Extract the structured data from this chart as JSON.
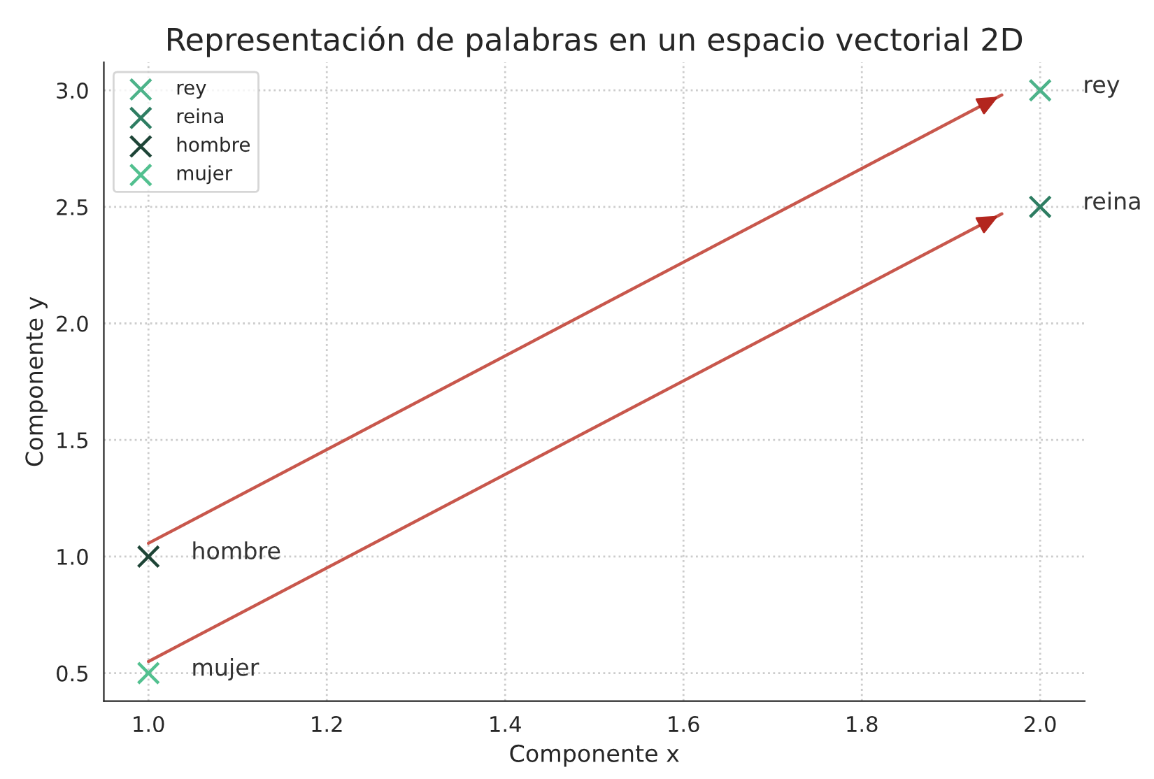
{
  "chart_data": {
    "type": "scatter",
    "title": "Representación de palabras en un espacio vectorial 2D",
    "xlabel": "Componente x",
    "ylabel": "Componente y",
    "series": [
      {
        "name": "rey",
        "color": "#4db38a",
        "marker": "cross",
        "x": [
          2.0
        ],
        "values": [
          3.0
        ]
      },
      {
        "name": "reina",
        "color": "#2e7d62",
        "marker": "cross",
        "x": [
          2.0
        ],
        "values": [
          2.5
        ]
      },
      {
        "name": "hombre",
        "color": "#1d4436",
        "marker": "cross",
        "x": [
          1.0
        ],
        "values": [
          1.0
        ]
      },
      {
        "name": "mujer",
        "color": "#52c08f",
        "marker": "cross",
        "x": [
          1.0
        ],
        "values": [
          0.5
        ]
      },
      {
        "type": "line",
        "color": "#c8574c",
        "marker": "none",
        "x": [
          1.0,
          1.957
        ],
        "values": [
          1.057,
          2.98
        ]
      },
      {
        "type": "line",
        "color": "#c8574c",
        "marker": "none",
        "x": [
          1.0,
          1.957
        ],
        "values": [
          0.55,
          2.47
        ]
      }
    ],
    "xlim": [
      0.95,
      2.05
    ],
    "ylim": [
      0.38,
      3.12
    ],
    "xticks": [
      {
        "value": 1.0,
        "label": "1.0"
      },
      {
        "value": 1.2,
        "label": "1.2"
      },
      {
        "value": 1.4,
        "label": "1.4"
      },
      {
        "value": 1.6,
        "label": "1.6"
      },
      {
        "value": 1.8,
        "label": "1.8"
      },
      {
        "value": 2.0,
        "label": "2.0"
      }
    ],
    "yticks": [
      {
        "value": 0.5,
        "label": "0.5"
      },
      {
        "value": 1.0,
        "label": "1.0"
      },
      {
        "value": 1.5,
        "label": "1.5"
      },
      {
        "value": 2.0,
        "label": "2.0"
      },
      {
        "value": 2.5,
        "label": "2.5"
      },
      {
        "value": 3.0,
        "label": "3.0"
      }
    ],
    "grid": true,
    "legend": "top left"
  }
}
